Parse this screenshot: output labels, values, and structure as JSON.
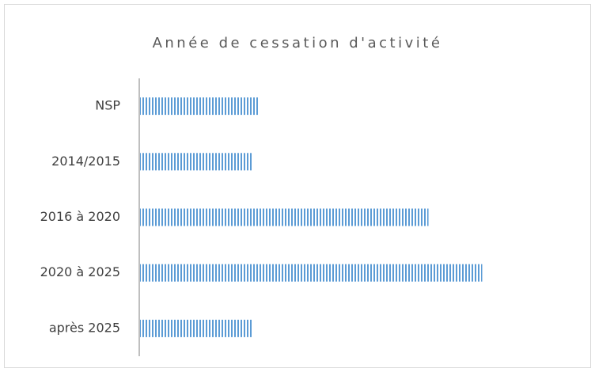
{
  "chart_data": {
    "type": "hbar",
    "title": "Année de cessation d'activité",
    "categories": [
      "NSP",
      "2014/2015",
      "2016 à 2020",
      "2020 à 2025",
      "après 2025"
    ],
    "values": [
      12.3,
      11.5,
      29.6,
      35.1,
      11.5
    ],
    "color": "#5b9bd5",
    "xlim": [
      0,
      40
    ]
  }
}
